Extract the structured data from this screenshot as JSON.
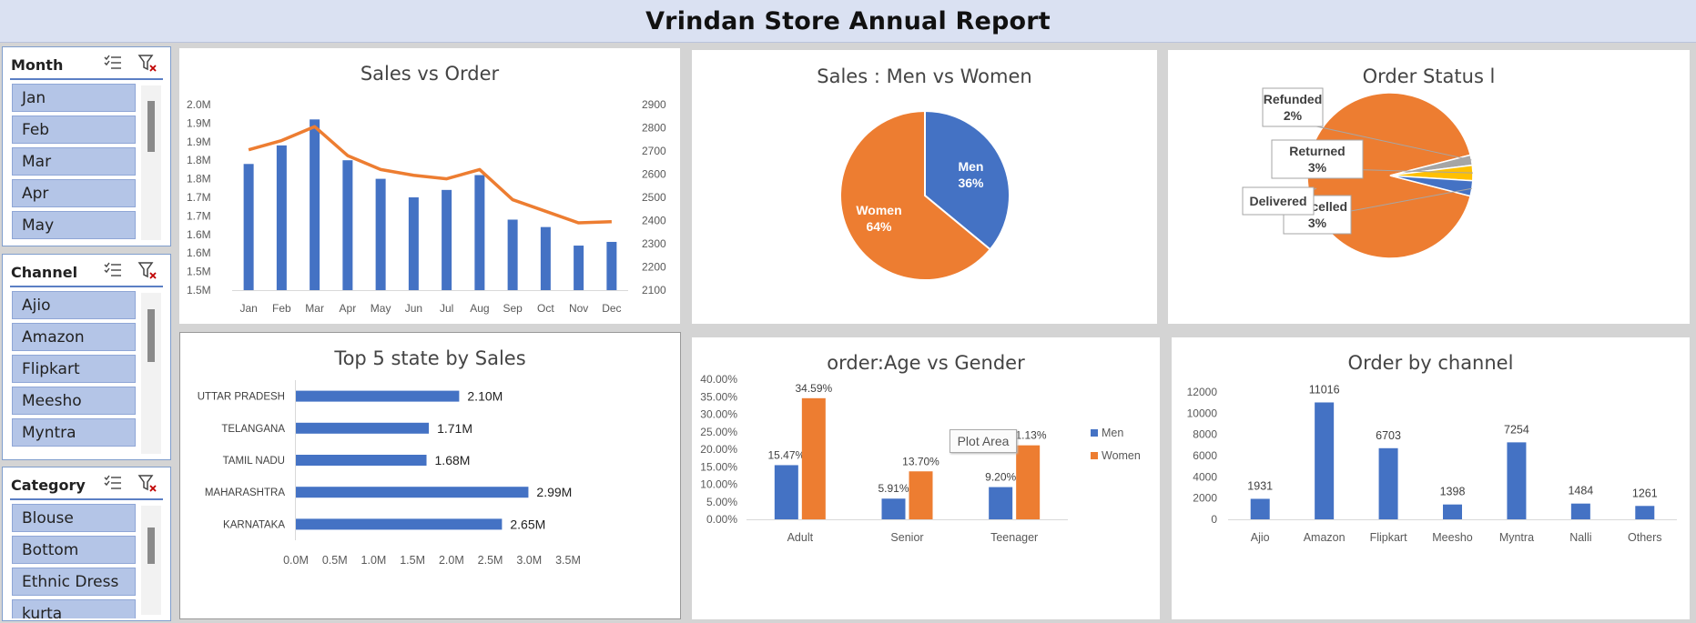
{
  "title": "Vrindan Store Annual Report",
  "slicers": [
    {
      "header": "Month",
      "items": [
        "Jan",
        "Feb",
        "Mar",
        "Apr",
        "May"
      ],
      "scroll_pos": 0.1
    },
    {
      "header": "Channel",
      "items": [
        "Ajio",
        "Amazon",
        "Flipkart",
        "Meesho",
        "Myntra"
      ],
      "scroll_pos": 0.1
    },
    {
      "header": "Category",
      "items": [
        "Blouse",
        "Bottom",
        "Ethnic Dress",
        "kurta"
      ],
      "scroll_pos": 0.2
    }
  ],
  "tooltip": "Plot Area",
  "charts": {
    "sales_vs_order": {
      "title": "Sales vs Order",
      "left_ticks": [
        "2.0M",
        "1.9M",
        "1.9M",
        "1.8M",
        "1.8M",
        "1.7M",
        "1.7M",
        "1.6M",
        "1.6M",
        "1.5M",
        "1.5M"
      ],
      "right_ticks": [
        "2900",
        "2800",
        "2700",
        "2600",
        "2500",
        "2400",
        "2300",
        "2200",
        "2100"
      ]
    },
    "men_vs_women": {
      "title": "Sales : Men vs Women"
    },
    "order_status": {
      "title": "Order Status l"
    },
    "top_states": {
      "title": "Top 5 state by Sales",
      "x_ticks": [
        "0.0M",
        "0.5M",
        "1.0M",
        "1.5M",
        "2.0M",
        "2.5M",
        "3.0M",
        "3.5M"
      ]
    },
    "age_gender": {
      "title": "order:Age vs Gender",
      "y_ticks": [
        "40.00%",
        "35.00%",
        "30.00%",
        "25.00%",
        "20.00%",
        "15.00%",
        "10.00%",
        "5.00%",
        "0.00%"
      ]
    },
    "channel_orders": {
      "title": "Order by channel",
      "y_ticks": [
        "12000",
        "10000",
        "8000",
        "6000",
        "4000",
        "2000",
        "0"
      ]
    }
  },
  "chart_data": [
    {
      "type": "bar",
      "title": "Sales vs Order",
      "categories": [
        "Jan",
        "Feb",
        "Mar",
        "Apr",
        "May",
        "Jun",
        "Jul",
        "Aug",
        "Sep",
        "Oct",
        "Nov",
        "Dec"
      ],
      "series": [
        {
          "name": "",
          "type": "bar",
          "axis": "left",
          "values": [
            1.84,
            1.89,
            1.96,
            1.85,
            1.8,
            1.75,
            1.77,
            1.81,
            1.69,
            1.67,
            1.62,
            1.63
          ]
        },
        {
          "name": "",
          "type": "line",
          "axis": "right",
          "values": [
            2705,
            2745,
            2805,
            2680,
            2620,
            2595,
            2580,
            2620,
            2490,
            2440,
            2390,
            2395
          ]
        }
      ],
      "ylim_left": [
        1.5,
        2.0
      ],
      "ylim_right": [
        2100,
        2900
      ],
      "color_bar": "#4472c4",
      "color_line": "#ed7d31"
    },
    {
      "type": "pie",
      "title": "Sales : Men vs Women",
      "labels": [
        "Men",
        "Women"
      ],
      "percent_labels": [
        "36%",
        "64%"
      ],
      "values": [
        36,
        64
      ],
      "colors": [
        "#4472c4",
        "#ed7d31"
      ]
    },
    {
      "type": "pie",
      "title": "Order Status l",
      "labels": [
        "Delivered",
        "Refunded",
        "Returned",
        "Cancelled"
      ],
      "percent_labels": [
        "",
        "2%",
        "3%",
        "3%"
      ],
      "values": [
        92,
        2,
        3,
        3
      ],
      "colors": [
        "#ed7d31",
        "#a5a5a5",
        "#ffc000",
        "#4472c4"
      ]
    },
    {
      "type": "bar",
      "title": "Top 5 state by Sales",
      "orientation": "horizontal",
      "categories": [
        "UTTAR PRADESH",
        "TELANGANA",
        "TAMIL NADU",
        "MAHARASHTRA",
        "KARNATAKA"
      ],
      "values": [
        2.1,
        1.71,
        1.68,
        2.99,
        2.65
      ],
      "data_labels": [
        "2.10M",
        "1.71M",
        "1.68M",
        "2.99M",
        "2.65M"
      ],
      "xlim": [
        0,
        3.5
      ],
      "color": "#4472c4"
    },
    {
      "type": "bar",
      "title": "order:Age vs Gender",
      "categories": [
        "Adult",
        "Senior",
        "Teenager"
      ],
      "series": [
        {
          "name": "Men",
          "values": [
            15.47,
            5.91,
            9.2
          ],
          "labels": [
            "15.47%",
            "5.91%",
            "9.20%"
          ],
          "color": "#4472c4"
        },
        {
          "name": "Women",
          "values": [
            34.59,
            13.7,
            21.13
          ],
          "labels": [
            "34.59%",
            "13.70%",
            "21.13%"
          ],
          "color": "#ed7d31"
        }
      ],
      "ylim": [
        0,
        40
      ],
      "legend": "right"
    },
    {
      "type": "bar",
      "title": "Order by channel",
      "categories": [
        "Ajio",
        "Amazon",
        "Flipkart",
        "Meesho",
        "Myntra",
        "Nalli",
        "Others"
      ],
      "values": [
        1931,
        11016,
        6703,
        1398,
        7254,
        1484,
        1261
      ],
      "data_labels": [
        "1931",
        "11016",
        "6703",
        "1398",
        "7254",
        "1484",
        "1261"
      ],
      "ylim": [
        0,
        12000
      ],
      "color": "#4472c4"
    }
  ]
}
